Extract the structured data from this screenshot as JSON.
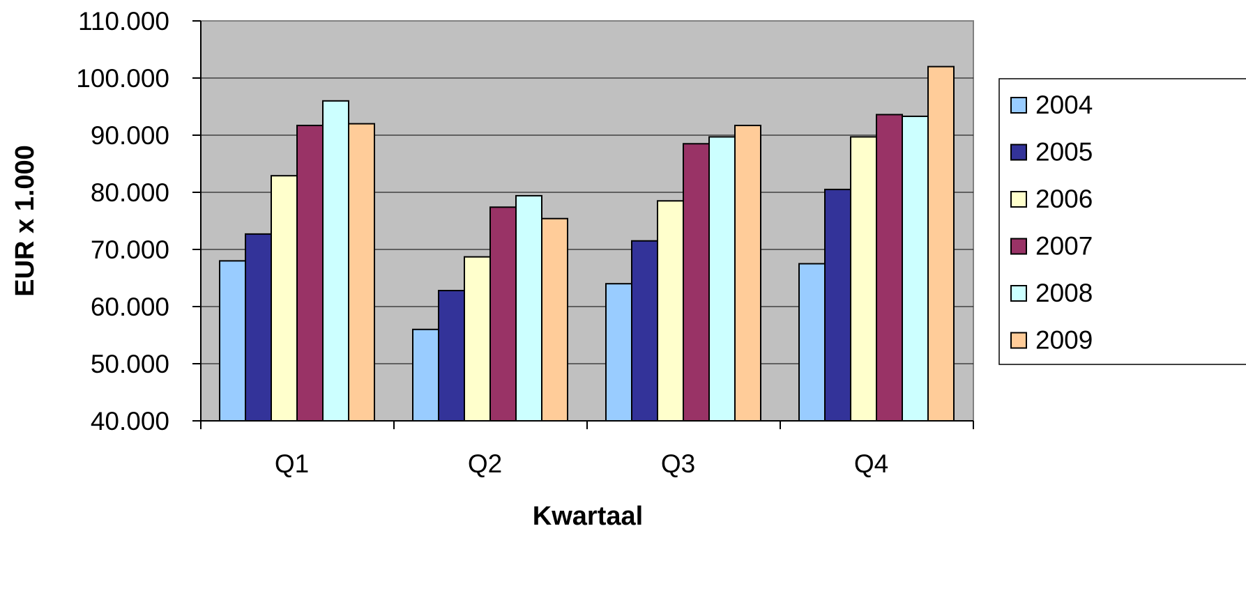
{
  "chart_data": {
    "type": "bar",
    "title": "",
    "xlabel": "Kwartaal",
    "ylabel": "EUR x 1.000",
    "categories": [
      "Q1",
      "Q2",
      "Q3",
      "Q4"
    ],
    "ylim": [
      40000,
      110000
    ],
    "yticks": [
      40000,
      50000,
      60000,
      70000,
      80000,
      90000,
      100000,
      110000
    ],
    "ytick_labels": [
      "40.000",
      "50.000",
      "60.000",
      "70.000",
      "80.000",
      "90.000",
      "100.000",
      "110.000"
    ],
    "grid": true,
    "plot_background": "#C0C0C0",
    "legend_position": "right",
    "series": [
      {
        "name": "2004",
        "color": "#99CCFF",
        "values": [
          68000,
          56000,
          64000,
          67500
        ]
      },
      {
        "name": "2005",
        "color": "#333399",
        "values": [
          72700,
          62800,
          71500,
          80500
        ]
      },
      {
        "name": "2006",
        "color": "#FFFFCC",
        "values": [
          82900,
          68700,
          78500,
          89700
        ]
      },
      {
        "name": "2007",
        "color": "#993366",
        "values": [
          91700,
          77400,
          88500,
          93600
        ]
      },
      {
        "name": "2008",
        "color": "#CCFFFF",
        "values": [
          96000,
          79400,
          89700,
          93300
        ]
      },
      {
        "name": "2009",
        "color": "#FFCC99",
        "values": [
          92000,
          75400,
          91700,
          102000
        ]
      }
    ]
  }
}
